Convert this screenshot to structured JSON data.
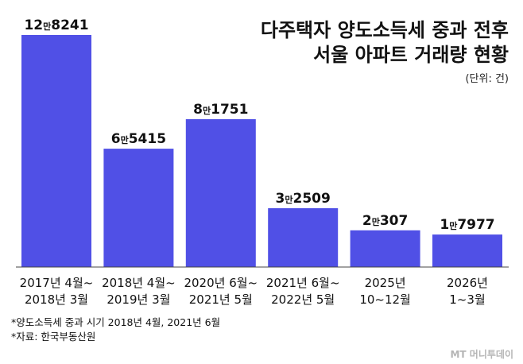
{
  "chart_data": {
    "type": "bar",
    "title_lines": [
      "다주택자 양도소득세 중과 전후",
      "서울 아파트 거래량 현황"
    ],
    "unit": "(단위: 건)",
    "categories": [
      [
        "2017년 4월~",
        "2018년 3월"
      ],
      [
        "2018년 4월~",
        "2019년 3월"
      ],
      [
        "2020년 6월~",
        "2021년 5월"
      ],
      [
        "2021년 6월~",
        "2022년 5월"
      ],
      [
        "2025년",
        "10~12월"
      ],
      [
        "2026년",
        "1~3월"
      ]
    ],
    "values": [
      128241,
      65415,
      81751,
      32509,
      20307,
      17977
    ],
    "value_labels": [
      {
        "lead": "12",
        "mid": "만",
        "tail": "8241"
      },
      {
        "lead": "6",
        "mid": "만",
        "tail": "5415"
      },
      {
        "lead": "8",
        "mid": "만",
        "tail": "1751"
      },
      {
        "lead": "3",
        "mid": "만",
        "tail": "2509"
      },
      {
        "lead": "2",
        "mid": "만",
        "tail": "307"
      },
      {
        "lead": "1",
        "mid": "만",
        "tail": "7977"
      }
    ],
    "bar_color": "#5050e6",
    "ylim": [
      0,
      128241
    ],
    "grid": false,
    "legend": "none"
  },
  "footnotes": [
    "*양도소득세 중과 시기 2018년 4월, 2021년 6월",
    "*자료: 한국부동산원"
  ],
  "logo_text": "MT 머니투데이"
}
